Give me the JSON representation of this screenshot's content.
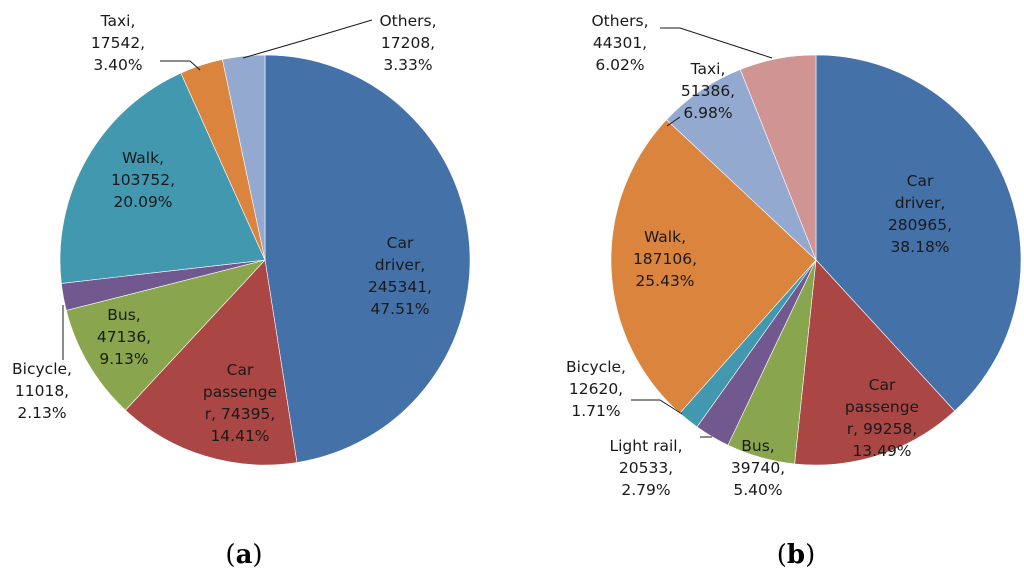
{
  "chart_data": [
    {
      "type": "pie",
      "caption": "a",
      "start": "12 o'clock",
      "direction": "clockwise",
      "slices": [
        {
          "name": "Car driver",
          "value": 245341,
          "percent": "47.51%",
          "color": "#4571A9",
          "label": [
            "Car",
            "driver,",
            "245341,",
            "47.51%"
          ]
        },
        {
          "name": "Car passenger",
          "value": 74395,
          "percent": "14.41%",
          "color": "#AA4643",
          "label": [
            "Car",
            "passenge",
            "r, 74395,",
            "14.41%"
          ]
        },
        {
          "name": "Bus",
          "value": 47136,
          "percent": "9.13%",
          "color": "#89A54E",
          "label": [
            "Bus,",
            "47136,",
            "9.13%"
          ]
        },
        {
          "name": "Bicycle",
          "value": 11018,
          "percent": "2.13%",
          "color": "#71588F",
          "label": [
            "Bicycle,",
            "11018,",
            "2.13%"
          ]
        },
        {
          "name": "Walk",
          "value": 103752,
          "percent": "20.09%",
          "color": "#4198AF",
          "label": [
            "Walk,",
            "103752,",
            "20.09%"
          ]
        },
        {
          "name": "Taxi",
          "value": 17542,
          "percent": "3.40%",
          "color": "#DB843D",
          "label": [
            "Taxi,",
            "17542,",
            "3.40%"
          ]
        },
        {
          "name": "Others",
          "value": 17208,
          "percent": "3.33%",
          "color": "#93A9CF",
          "label": [
            "Others,",
            "17208,",
            "3.33%"
          ]
        }
      ]
    },
    {
      "type": "pie",
      "caption": "b",
      "start": "12 o'clock",
      "direction": "clockwise",
      "slices": [
        {
          "name": "Car driver",
          "value": 280965,
          "percent": "38.18%",
          "color": "#4571A9",
          "label": [
            "Car",
            "driver,",
            "280965,",
            "38.18%"
          ]
        },
        {
          "name": "Car passenger",
          "value": 99258,
          "percent": "13.49%",
          "color": "#AA4643",
          "label": [
            "Car",
            "passenge",
            "r, 99258,",
            "13.49%"
          ]
        },
        {
          "name": "Bus",
          "value": 39740,
          "percent": "5.40%",
          "color": "#89A54E",
          "label": [
            "Bus,",
            "39740,",
            "5.40%"
          ]
        },
        {
          "name": "Light rail",
          "value": 20533,
          "percent": "2.79%",
          "color": "#71588F",
          "label": [
            "Light rail,",
            "20533,",
            "2.79%"
          ]
        },
        {
          "name": "Bicycle",
          "value": 12620,
          "percent": "1.71%",
          "color": "#4198AF",
          "label": [
            "Bicycle,",
            "12620,",
            "1.71%"
          ]
        },
        {
          "name": "Walk",
          "value": 187106,
          "percent": "25.43%",
          "color": "#DB843D",
          "label": [
            "Walk,",
            "187106,",
            "25.43%"
          ]
        },
        {
          "name": "Taxi",
          "value": 51386,
          "percent": "6.98%",
          "color": "#93A9CF",
          "label": [
            "Taxi,",
            "51386,",
            "6.98%"
          ]
        },
        {
          "name": "Others",
          "value": 44301,
          "percent": "6.02%",
          "color": "#D09493",
          "label": [
            "Others,",
            "44301,",
            "6.02%"
          ]
        }
      ]
    }
  ]
}
